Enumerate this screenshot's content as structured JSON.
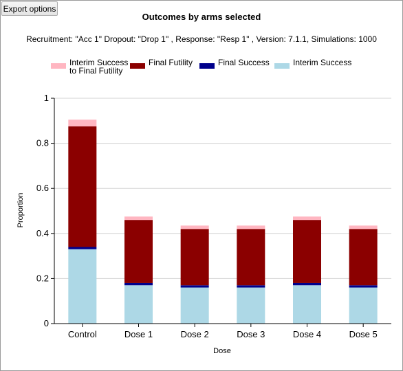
{
  "toolbar": {
    "export_label": "Export options"
  },
  "chart_data": {
    "type": "bar",
    "stacked": true,
    "title": "Outcomes by arms selected",
    "subtitle": "Recruitment: \"Acc 1\" Dropout: \"Drop 1\" , Response: \"Resp 1\" , Version: 7.1.1, Simulations: 1000",
    "xlabel": "Dose",
    "ylabel": "Proportion",
    "ylim": [
      0,
      1
    ],
    "yticks": [
      "0",
      "0.2",
      "0.4",
      "0.6",
      "0.8",
      "1"
    ],
    "grid": true,
    "legend_position": "top",
    "categories": [
      "Control",
      "Dose 1",
      "Dose 2",
      "Dose 3",
      "Dose 4",
      "Dose 5"
    ],
    "series": [
      {
        "name": "Interim Success",
        "color": "#add8e6",
        "values": [
          0.33,
          0.17,
          0.16,
          0.16,
          0.17,
          0.16
        ]
      },
      {
        "name": "Final Success",
        "color": "#00008b",
        "values": [
          0.01,
          0.01,
          0.01,
          0.01,
          0.01,
          0.01
        ]
      },
      {
        "name": "Final Futility",
        "color": "#8b0000",
        "values": [
          0.535,
          0.28,
          0.25,
          0.25,
          0.28,
          0.25
        ]
      },
      {
        "name": "Interim Success to Final Futility",
        "color": "#ffb6c1",
        "values": [
          0.03,
          0.015,
          0.015,
          0.015,
          0.015,
          0.015
        ]
      }
    ],
    "legend": [
      {
        "line1": "Interim Success",
        "line2": "to Final Futility",
        "color": "#ffb6c1"
      },
      {
        "line1": "Final Futility",
        "line2": "",
        "color": "#8b0000"
      },
      {
        "line1": "Final Success",
        "line2": "",
        "color": "#00008b"
      },
      {
        "line1": "Interim Success",
        "line2": "",
        "color": "#add8e6"
      }
    ]
  }
}
